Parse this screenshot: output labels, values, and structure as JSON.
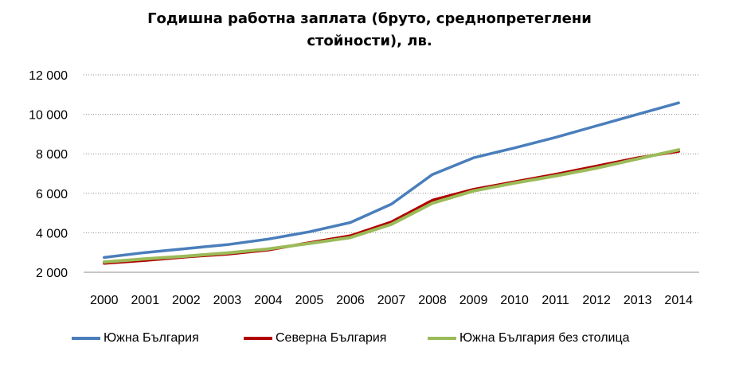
{
  "chart_data": {
    "type": "line",
    "title_lines": [
      "Годишна работна заплата (бруто, среднопретеглени",
      "стойности), лв."
    ],
    "xlabel": "",
    "ylabel": "",
    "categories": [
      "2000",
      "2001",
      "2002",
      "2003",
      "2004",
      "2005",
      "2006",
      "2007",
      "2008",
      "2009",
      "2010",
      "2011",
      "2012",
      "2013",
      "2014"
    ],
    "ylim": [
      2000,
      12000
    ],
    "yticks": [
      2000,
      4000,
      6000,
      8000,
      10000,
      12000
    ],
    "ytick_labels": [
      "2 000",
      "4 000",
      "6 000",
      "8 000",
      "10 000",
      "12 000"
    ],
    "grid": "horizontal dotted",
    "legend_position": "bottom",
    "series": [
      {
        "name": "Южна България",
        "color": "#4a7ebb",
        "values": [
          2750,
          3000,
          3200,
          3400,
          3680,
          4050,
          4520,
          5450,
          6950,
          7800,
          8300,
          8830,
          9420,
          10000,
          10580
        ]
      },
      {
        "name": "Северна България",
        "color": "#b00000",
        "values": [
          2450,
          2600,
          2780,
          2920,
          3130,
          3500,
          3850,
          4550,
          5650,
          6200,
          6580,
          6960,
          7380,
          7800,
          8120
        ]
      },
      {
        "name": "Южна България без столица",
        "color": "#9bbb59",
        "values": [
          2520,
          2680,
          2820,
          2980,
          3180,
          3460,
          3760,
          4430,
          5500,
          6120,
          6520,
          6880,
          7280,
          7740,
          8200
        ]
      }
    ]
  }
}
